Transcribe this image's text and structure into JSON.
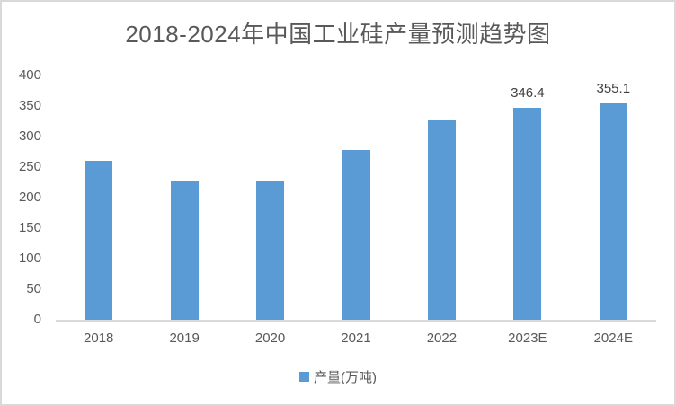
{
  "title": "2018-2024年中国工业硅产量预测趋势图",
  "chart_data": {
    "type": "bar",
    "title": "2018-2024年中国工业硅产量预测趋势图",
    "categories": [
      "2018",
      "2019",
      "2020",
      "2021",
      "2022",
      "2023E",
      "2024E"
    ],
    "values": [
      260,
      226,
      227,
      278,
      327,
      346.4,
      355.1
    ],
    "bar_labels": [
      "",
      "",
      "",
      "",
      "",
      "346.4",
      "355.1"
    ],
    "xlabel": "",
    "ylabel": "",
    "ylim": [
      0,
      400
    ],
    "yticks": [
      0,
      50,
      100,
      150,
      200,
      250,
      300,
      350,
      400
    ],
    "grid": false,
    "legend": {
      "label": "产量(万吨)",
      "position": "bottom"
    },
    "series_name": "产量(万吨)"
  },
  "colors": {
    "bar": "#5B9BD5",
    "title_text": "#595959",
    "axis_text": "#595959",
    "data_label_text": "#404040",
    "axis_line": "#D9D9D9",
    "border": "#D9D9D9",
    "background": "#FFFFFF"
  }
}
